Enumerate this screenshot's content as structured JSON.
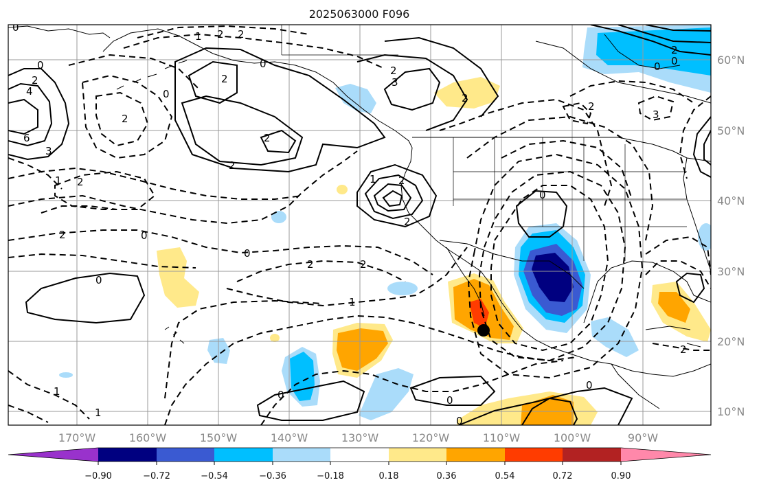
{
  "title": "2025063000 F096",
  "lon_labels": [
    "170°W",
    "160°W",
    "150°W",
    "140°W",
    "130°W",
    "120°W",
    "110°W",
    "100°W",
    "90°W"
  ],
  "lat_labels": [
    "60°N",
    "50°N",
    "40°N",
    "30°N",
    "20°N",
    "10°N"
  ],
  "colorbar": {
    "tick_labels": [
      "−0.90",
      "−0.72",
      "−0.54",
      "−0.36",
      "−0.18",
      "0.18",
      "0.36",
      "0.54",
      "0.72",
      "0.90"
    ],
    "colors": [
      "#9932cc",
      "#000080",
      "#3a5ad2",
      "#00bfff",
      "#aadcfa",
      "#ffffff",
      "#ffe98a",
      "#ffa500",
      "#ff3c00",
      "#b22222",
      "#ff88aa"
    ]
  },
  "contour_labels": [
    {
      "id": "c0-a",
      "text": "0"
    },
    {
      "id": "c2-a",
      "text": "2"
    },
    {
      "id": "c4-a",
      "text": "4"
    },
    {
      "id": "c6-a",
      "text": "6"
    },
    {
      "id": "c3-a",
      "text": "3"
    },
    {
      "id": "c1-a",
      "text": "1"
    },
    {
      "id": "c2-b",
      "text": "2"
    },
    {
      "id": "cm2-a",
      "text": "2"
    },
    {
      "id": "c0-b",
      "text": "0"
    },
    {
      "id": "c2-c",
      "text": "2"
    },
    {
      "id": "c0-c",
      "text": "0"
    },
    {
      "id": "c2-d",
      "text": "2"
    },
    {
      "id": "c0-d",
      "text": "0"
    },
    {
      "id": "c2-e",
      "text": "2"
    },
    {
      "id": "c3-b",
      "text": "3"
    },
    {
      "id": "c2-f",
      "text": "2"
    },
    {
      "id": "c2-g",
      "text": "2"
    },
    {
      "id": "c0-e",
      "text": "0"
    },
    {
      "id": "c2-h",
      "text": "2"
    },
    {
      "id": "c2-i",
      "text": "2"
    },
    {
      "id": "c1-b",
      "text": "1"
    },
    {
      "id": "c2-j",
      "text": "2"
    },
    {
      "id": "c0-f",
      "text": "0"
    },
    {
      "id": "c0-g",
      "text": "0"
    },
    {
      "id": "c2-k",
      "text": "2"
    },
    {
      "id": "c2-l",
      "text": "2"
    },
    {
      "id": "c1-c",
      "text": "1"
    },
    {
      "id": "c0-h",
      "text": "0"
    },
    {
      "id": "c0-i",
      "text": "0"
    },
    {
      "id": "c0-j",
      "text": "0"
    },
    {
      "id": "c1-d",
      "text": "1"
    },
    {
      "id": "c0-k",
      "text": "0"
    },
    {
      "id": "c1-e",
      "text": "1"
    },
    {
      "id": "c2-m",
      "text": "2"
    },
    {
      "id": "c0-l",
      "text": "0"
    },
    {
      "id": "c1-f",
      "text": "1"
    },
    {
      "id": "c0-m",
      "text": "0"
    },
    {
      "id": "c0-n",
      "text": "0"
    },
    {
      "id": "c2-n",
      "text": "2"
    },
    {
      "id": "c2-o",
      "text": "2"
    },
    {
      "id": "c3-c",
      "text": "3"
    },
    {
      "id": "c2-p",
      "text": "2"
    },
    {
      "id": "c2-q",
      "text": "2"
    }
  ]
}
